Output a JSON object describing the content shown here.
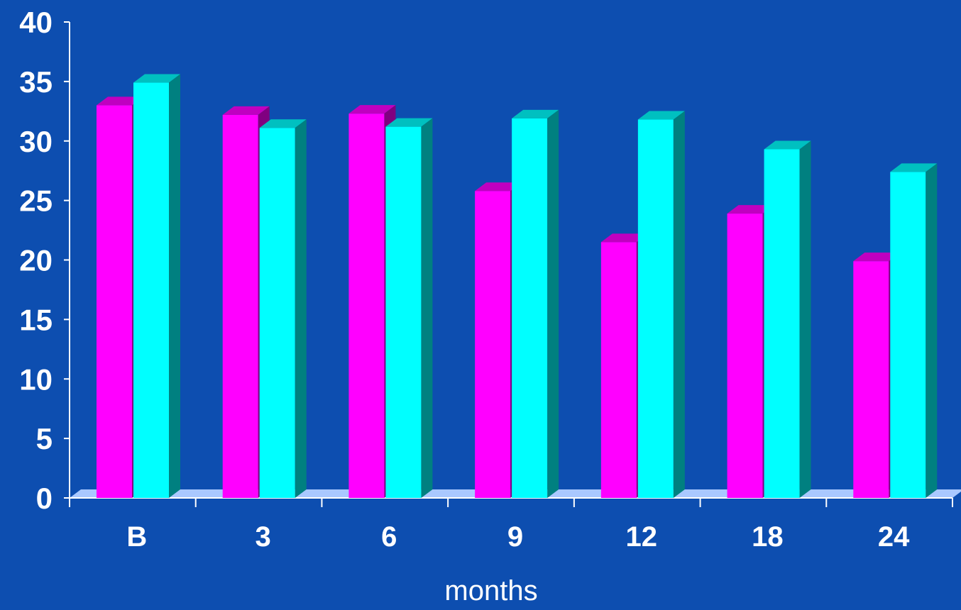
{
  "chart_data": {
    "type": "bar",
    "categories": [
      "B",
      "3",
      "6",
      "9",
      "12",
      "18",
      "24"
    ],
    "series": [
      {
        "values": [
          33,
          32.2,
          32.3,
          25.8,
          21.5,
          23.9,
          19.9
        ]
      },
      {
        "values": [
          34.9,
          31.1,
          31.2,
          31.9,
          31.8,
          29.3,
          27.4
        ]
      }
    ],
    "xlabel": "months",
    "ylabel": "",
    "ylim": [
      0,
      40
    ],
    "yticks": [
      0,
      5,
      10,
      15,
      20,
      25,
      30,
      35,
      40
    ],
    "grid": false,
    "legend": "none",
    "colors": {
      "background": "#0d4eb0",
      "series_front": [
        "#ff00ff",
        "#00ffff"
      ],
      "series_top": [
        "#c000c0",
        "#00c0c0"
      ],
      "series_side": [
        "#800080",
        "#008080"
      ],
      "floor": "#a9c8ff",
      "text": "#ffffff",
      "axis": "#ffffff"
    }
  }
}
